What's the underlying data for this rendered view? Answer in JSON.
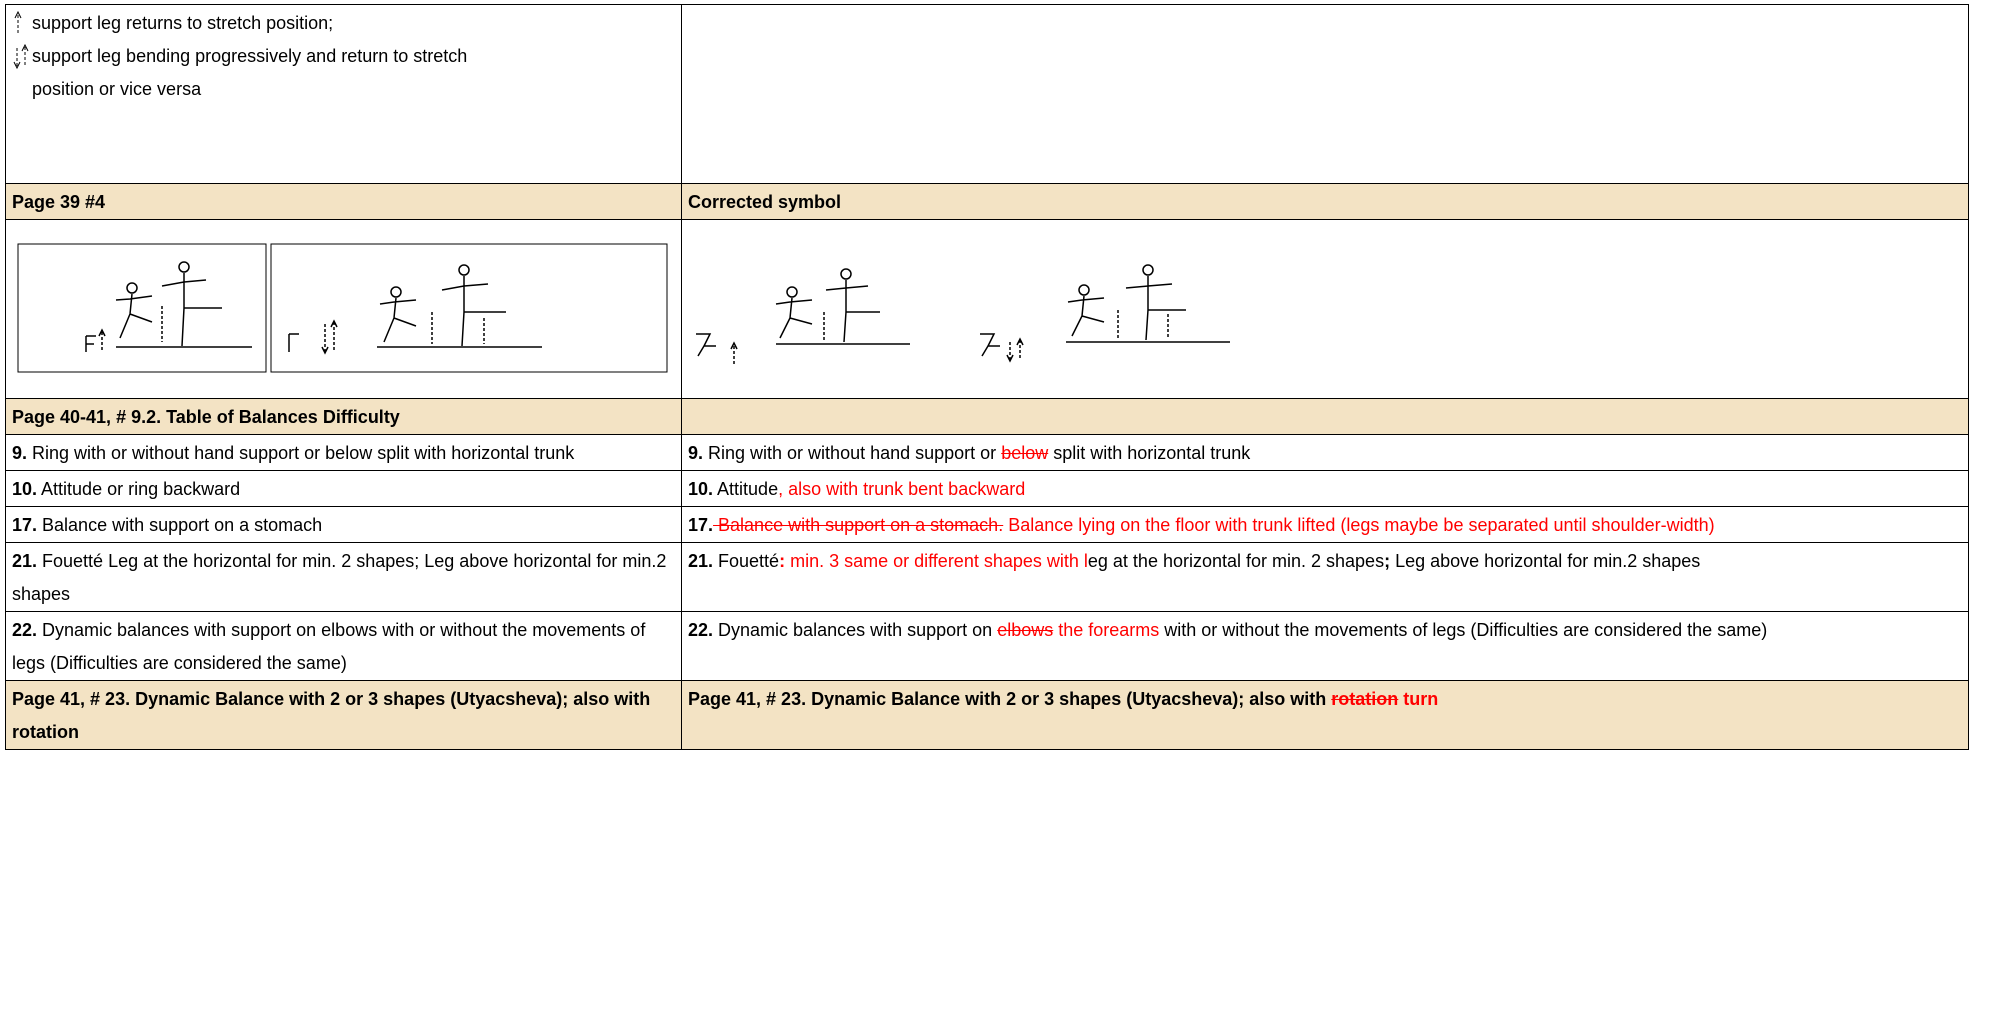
{
  "legend": [
    "support leg returns to stretch position;",
    "support leg bending progressively and return to stretch position or vice versa"
  ],
  "headers": [
    "Page 39 #4",
    "Corrected symbol"
  ],
  "section": "Page 40-41, # 9.2. Table of Balances Difficulty",
  "rows": [
    {
      "left": [
        {
          "text": "9.",
          "bold": true
        },
        {
          "text": " Ring with or without hand support or below split with horizontal trunk"
        }
      ],
      "right": [
        {
          "text": "9.",
          "bold": true
        },
        {
          "text": " Ring with or without hand support or "
        },
        {
          "text": "below",
          "red": true,
          "strike": true
        },
        {
          "text": " split with horizontal trunk"
        }
      ]
    },
    {
      "left": [
        {
          "text": "10.",
          "bold": true
        },
        {
          "text": " Attitude or ring backward"
        }
      ],
      "right": [
        {
          "text": "10.",
          "bold": true
        },
        {
          "text": " Attitude"
        },
        {
          "text": ", also with trunk bent backward",
          "red": true
        }
      ]
    },
    {
      "left": [
        {
          "text": "17.",
          "bold": true
        },
        {
          "text": " Balance with support on a stomach"
        }
      ],
      "right": [
        {
          "text": "17.",
          "bold": true
        },
        {
          "text": " Balance with support on a stomach.",
          "red": true,
          "strike": true
        },
        {
          "text": " Balance lying on the floor with trunk lifted (legs maybe be separated until shoulder-width)",
          "red": true
        }
      ]
    },
    {
      "left": [
        {
          "text": "21.",
          "bold": true
        },
        {
          "text": " Fouetté Leg at the horizontal for min. 2 shapes; Leg above horizontal for min.2 shapes"
        }
      ],
      "right": [
        {
          "text": "21.",
          "bold": true
        },
        {
          "text": " Fouetté"
        },
        {
          "text": ":",
          "bold": true,
          "red": true
        },
        {
          "text": " min. 3 same or different shapes with l",
          "red": true
        },
        {
          "text": "eg at the horizontal for min. 2 shapes"
        },
        {
          "text": ";",
          "bold": true
        },
        {
          "text": " Leg above horizontal for min.2 shapes"
        }
      ]
    },
    {
      "left": [
        {
          "text": "22.",
          "bold": true
        },
        {
          "text": " Dynamic balances with support on elbows with or without the movements of legs (Difficulties are considered the same)"
        }
      ],
      "right": [
        {
          "text": "22.",
          "bold": true
        },
        {
          "text": " Dynamic balances with support on "
        },
        {
          "text": "elbows",
          "red": true,
          "strike": true
        },
        {
          "text": " the forearms",
          "red": true
        },
        {
          "text": " with or without the movements of legs (Difficulties are considered the same)"
        }
      ]
    }
  ],
  "footer": {
    "left": [
      {
        "text": "Page 41, # 23. Dynamic Balance with 2 or 3 shapes (Utyacsheva); also with rotation",
        "bold": true
      }
    ],
    "right": [
      {
        "text": "Page 41, # 23. Dynamic Balance with 2 or 3 shapes (Utyacsheva); also with ",
        "bold": true
      },
      {
        "text": "rotation",
        "bold": true,
        "red": true,
        "strike": true
      },
      {
        "text": " turn",
        "bold": true,
        "red": true
      }
    ]
  }
}
